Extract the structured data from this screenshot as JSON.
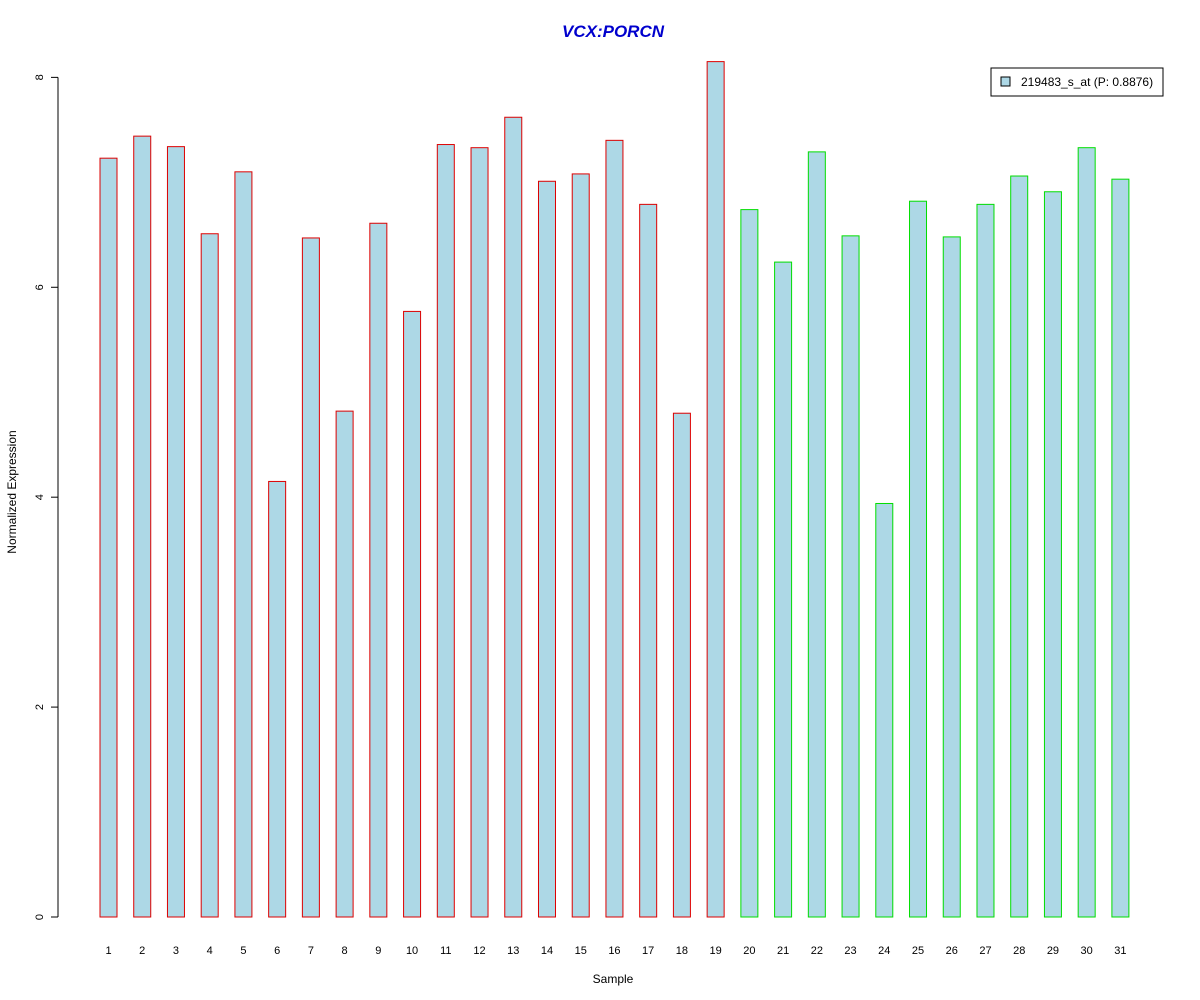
{
  "chart_data": {
    "type": "bar",
    "title": "VCX:PORCN",
    "xlabel": "Sample",
    "ylabel": "Normalized Expression",
    "ylim": [
      0,
      8
    ],
    "yticks": [
      "0",
      "2",
      "4",
      "6",
      "8"
    ],
    "grid": false,
    "legend": {
      "placement": "top-right",
      "label": "219483_s_at (P: 0.8876)"
    },
    "categories": [
      "1",
      "2",
      "3",
      "4",
      "5",
      "6",
      "7",
      "8",
      "9",
      "10",
      "11",
      "12",
      "13",
      "14",
      "15",
      "16",
      "17",
      "18",
      "19",
      "20",
      "21",
      "22",
      "23",
      "24",
      "25",
      "26",
      "27",
      "28",
      "29",
      "30",
      "31"
    ],
    "series": [
      {
        "name": "219483_s_at (P: 0.8876)",
        "values": [
          7.23,
          7.44,
          7.34,
          6.51,
          7.1,
          4.15,
          6.47,
          4.82,
          6.61,
          5.77,
          7.36,
          7.33,
          7.62,
          7.01,
          7.08,
          7.4,
          6.79,
          4.8,
          8.15,
          6.74,
          6.24,
          7.29,
          6.49,
          3.94,
          6.82,
          6.48,
          6.79,
          7.06,
          6.91,
          7.33,
          7.03
        ]
      }
    ],
    "group_border_colors": [
      "#dd0000",
      "#dd0000",
      "#dd0000",
      "#dd0000",
      "#dd0000",
      "#dd0000",
      "#dd0000",
      "#dd0000",
      "#dd0000",
      "#dd0000",
      "#dd0000",
      "#dd0000",
      "#dd0000",
      "#dd0000",
      "#dd0000",
      "#dd0000",
      "#dd0000",
      "#dd0000",
      "#dd0000",
      "#00dd00",
      "#00dd00",
      "#00dd00",
      "#00dd00",
      "#00dd00",
      "#00dd00",
      "#00dd00",
      "#00dd00",
      "#00dd00",
      "#00dd00",
      "#00dd00",
      "#00dd00"
    ],
    "colors": {
      "bar_fill": "#add8e6",
      "title": "#0000cd",
      "axis": "#000000"
    }
  }
}
